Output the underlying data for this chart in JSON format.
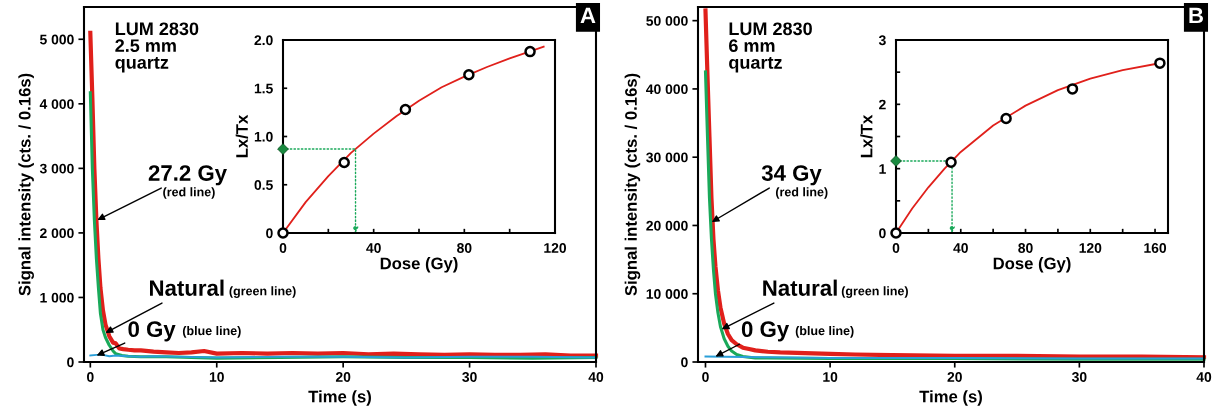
{
  "chart_data": [
    {
      "type": "line",
      "xlabel": "Time (s)",
      "ylabel": "Signal intensity (cts. / 0.16s)",
      "xlim": [
        -0.5,
        40
      ],
      "ylim": [
        0,
        5500
      ],
      "xticks": [
        0,
        10,
        20,
        30,
        40
      ],
      "yticks": [
        0,
        {
          "value": 1000,
          "label": "1 000"
        },
        {
          "value": 2000,
          "label": "2 000"
        },
        {
          "value": 3000,
          "label": "3 000"
        },
        {
          "value": 4000,
          "label": "4 000"
        },
        {
          "value": 5000,
          "label": "5 000"
        }
      ],
      "series": [
        {
          "color": "#e0201b",
          "x": [
            0,
            0.16,
            0.32,
            0.48,
            0.64,
            0.8,
            1.0,
            1.2,
            1.5,
            1.8,
            2.0,
            2.3,
            2.6,
            3,
            3.5,
            4,
            5,
            6,
            7,
            8,
            9,
            10,
            12,
            14,
            16,
            18,
            20,
            22,
            24,
            26,
            28,
            30,
            32,
            34,
            36,
            38,
            40
          ],
          "values": [
            5100,
            4100,
            3000,
            2200,
            1600,
            1150,
            800,
            580,
            400,
            300,
            290,
            210,
            200,
            190,
            180,
            180,
            160,
            150,
            140,
            150,
            170,
            130,
            140,
            130,
            140,
            130,
            140,
            120,
            130,
            120,
            110,
            120,
            110,
            110,
            120,
            100,
            100
          ]
        },
        {
          "color": "#1aa95a",
          "x": [
            0,
            0.16,
            0.32,
            0.48,
            0.64,
            0.8,
            1.0,
            1.2,
            1.5,
            1.8,
            2.0,
            2.5,
            3,
            4,
            5,
            6,
            8,
            10,
            15,
            20,
            25,
            30,
            35,
            40
          ],
          "values": [
            4170,
            3000,
            2200,
            1600,
            1150,
            750,
            500,
            380,
            260,
            170,
            130,
            100,
            90,
            80,
            80,
            80,
            70,
            60,
            70,
            80,
            70,
            70,
            60,
            70
          ]
        },
        {
          "color": "#2a9fd8",
          "x": [
            0,
            0.5,
            1,
            1.5,
            2,
            3,
            4,
            5,
            10,
            15,
            20,
            25,
            30,
            35,
            40
          ],
          "values": [
            100,
            110,
            110,
            90,
            100,
            90,
            80,
            90,
            70,
            80,
            80,
            70,
            80,
            80,
            70
          ]
        }
      ],
      "annotations": [
        {
          "text": "27.2 Gy",
          "x": 0.55,
          "y": 2200
        },
        "(red line)",
        {
          "text": "Natural",
          "x": 1.2,
          "y": 450
        },
        "(green line)",
        {
          "text": "0 Gy",
          "x": 0.5,
          "y": 100
        },
        "(blue line)",
        "LUM 2830\n2.5 mm\nquartz",
        "A"
      ]
    },
    {
      "type": "line",
      "xlabel": "Dose (Gy)",
      "ylabel": "Lx/Tx",
      "xlim": [
        0,
        120
      ],
      "ylim": [
        0,
        2
      ],
      "xticks": [
        0,
        {
          "value": 20,
          "label": null
        },
        40,
        {
          "value": 60,
          "label": null
        },
        80,
        {
          "value": 100,
          "label": null
        },
        120
      ],
      "yticks": [
        0,
        0.5,
        {
          "value": 1,
          "label": "1.0"
        },
        1.5,
        {
          "value": 2,
          "label": "2.0"
        }
      ],
      "series": [
        {
          "color": "#e0201b",
          "x": [
            0,
            10,
            20,
            30,
            40,
            50,
            60,
            70,
            80,
            90,
            100,
            110,
            115
          ],
          "values": [
            0,
            0.32,
            0.59,
            0.83,
            1.03,
            1.21,
            1.37,
            1.51,
            1.62,
            1.72,
            1.81,
            1.89,
            1.93
          ]
        },
        {
          "type": "scatter",
          "marker": "diamond",
          "color": "#1a8a40",
          "x": [
            0
          ],
          "values": [
            0.87
          ]
        },
        {
          "type": "scatter",
          "marker": "circle",
          "color": "#000000",
          "x": [
            0,
            27,
            54,
            82,
            109
          ],
          "values": [
            0,
            0.73,
            1.28,
            1.64,
            1.88
          ]
        }
      ]
    },
    {
      "type": "line",
      "xlabel": "Time (s)",
      "ylabel": "Signal intensity (cts. / 0.16s)",
      "xlim": [
        -0.6,
        40
      ],
      "ylim": [
        0,
        52000
      ],
      "xticks": [
        0,
        10,
        20,
        30,
        40
      ],
      "yticks": [
        0,
        {
          "value": 10000,
          "label": "10 000"
        },
        {
          "value": 20000,
          "label": "20 000"
        },
        {
          "value": 30000,
          "label": "30 000"
        },
        {
          "value": 40000,
          "label": "40 000"
        },
        {
          "value": 50000,
          "label": "50 000"
        }
      ],
      "series": [
        {
          "color": "#e0201b",
          "x": [
            0,
            0.16,
            0.32,
            0.48,
            0.64,
            0.8,
            1.0,
            1.2,
            1.5,
            1.8,
            2.1,
            2.5,
            3,
            3.5,
            4,
            5,
            6,
            8,
            10,
            12,
            15,
            20,
            25,
            30,
            35,
            40
          ],
          "values": [
            51500,
            42000,
            33000,
            24000,
            18000,
            14000,
            10500,
            8000,
            5600,
            4100,
            3200,
            2600,
            2100,
            1900,
            1700,
            1500,
            1400,
            1300,
            1200,
            1100,
            1000,
            900,
            900,
            800,
            800,
            700
          ]
        },
        {
          "color": "#1aa95a",
          "x": [
            0,
            0.16,
            0.32,
            0.48,
            0.64,
            0.8,
            1.0,
            1.2,
            1.5,
            1.8,
            2.1,
            2.5,
            3,
            4,
            5,
            10,
            20,
            30,
            40
          ],
          "values": [
            42500,
            33000,
            24000,
            18000,
            13500,
            10000,
            7200,
            5200,
            3400,
            2300,
            1600,
            1100,
            800,
            600,
            600,
            500,
            500,
            400,
            400
          ]
        },
        {
          "color": "#2a9fd8",
          "x": [
            0,
            5,
            10,
            20,
            30,
            40
          ],
          "values": [
            800,
            700,
            600,
            600,
            500,
            500
          ]
        }
      ],
      "annotations": [
        {
          "text": "34 Gy",
          "x": 0.5,
          "y": 20500
        },
        "(red line)",
        {
          "text": "Natural",
          "x": 1.3,
          "y": 4800
        },
        "(green line)",
        {
          "text": "0 Gy",
          "x": 0.8,
          "y": 800
        },
        "(blue line)",
        "LUM 2830\n6 mm\nquartz",
        "B"
      ]
    },
    {
      "type": "line",
      "xlabel": "Dose (Gy)",
      "ylabel": "Lx/Tx",
      "xlim": [
        0,
        168
      ],
      "ylim": [
        0,
        3
      ],
      "xticks": [
        0,
        {
          "value": 20,
          "label": null
        },
        40,
        {
          "value": 60,
          "label": null
        },
        80,
        {
          "value": 100,
          "label": null
        },
        120,
        {
          "value": 140,
          "label": null
        },
        160
      ],
      "yticks": [
        0,
        {
          "value": 0.5,
          "label": null
        },
        1,
        {
          "value": 1.5,
          "label": null
        },
        2,
        {
          "value": 2.5,
          "label": null
        },
        3
      ],
      "series": [
        {
          "color": "#e0201b",
          "x": [
            0,
            10,
            20,
            30,
            40,
            60,
            80,
            100,
            120,
            140,
            163
          ],
          "values": [
            0,
            0.38,
            0.71,
            1.0,
            1.26,
            1.67,
            1.98,
            2.22,
            2.4,
            2.53,
            2.64
          ]
        },
        {
          "type": "scatter",
          "marker": "diamond",
          "color": "#1a8a40",
          "x": [
            0
          ],
          "values": [
            1.12
          ]
        },
        {
          "type": "scatter",
          "marker": "circle",
          "color": "#000000",
          "x": [
            0,
            34,
            68,
            109,
            163
          ],
          "values": [
            0,
            1.1,
            1.78,
            2.24,
            2.64
          ]
        }
      ]
    }
  ]
}
